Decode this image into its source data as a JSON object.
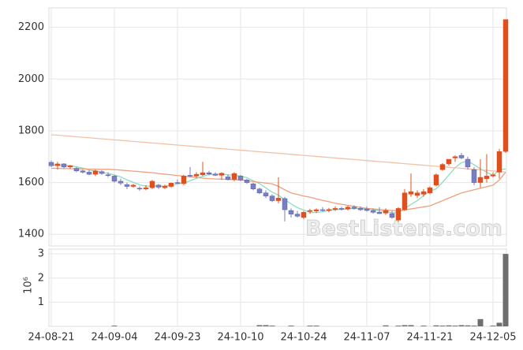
{
  "chart_data": {
    "type": "candlestick",
    "categories": [
      "24-08-21",
      null,
      null,
      null,
      null,
      null,
      null,
      null,
      null,
      null,
      "24-09-04",
      null,
      null,
      null,
      null,
      null,
      null,
      null,
      null,
      null,
      "24-09-23",
      null,
      null,
      null,
      null,
      null,
      null,
      null,
      null,
      null,
      "24-10-10",
      null,
      null,
      null,
      null,
      null,
      null,
      null,
      null,
      null,
      "24-10-24",
      null,
      null,
      null,
      null,
      null,
      null,
      null,
      null,
      null,
      "24-11-07",
      null,
      null,
      null,
      null,
      null,
      null,
      null,
      null,
      null,
      "24-11-21",
      null,
      null,
      null,
      null,
      null,
      null,
      null,
      null,
      null,
      "24-12-05",
      null,
      null
    ],
    "open": [
      1678,
      1665,
      1672,
      1660,
      1655,
      1645,
      1640,
      1632,
      1642,
      1630,
      1625,
      1605,
      1592,
      1585,
      1578,
      1575,
      1580,
      1590,
      1580,
      1585,
      1600,
      1596,
      1628,
      1625,
      1630,
      1638,
      1633,
      1628,
      1622,
      1612,
      1625,
      1610,
      1595,
      1575,
      1560,
      1548,
      1530,
      1538,
      1492,
      1478,
      1465,
      1488,
      1490,
      1495,
      1492,
      1496,
      1500,
      1498,
      1505,
      1500,
      1498,
      1492,
      1485,
      1482,
      1480,
      1455,
      1495,
      1555,
      1550,
      1555,
      1560,
      1590,
      1650,
      1672,
      1695,
      1705,
      1690,
      1650,
      1600,
      1615,
      1625,
      1640,
      1720
    ],
    "high": [
      1685,
      1680,
      1675,
      1668,
      1660,
      1650,
      1648,
      1650,
      1648,
      1640,
      1630,
      1615,
      1600,
      1595,
      1585,
      1590,
      1610,
      1595,
      1592,
      1600,
      1612,
      1630,
      1660,
      1640,
      1680,
      1645,
      1640,
      1640,
      1632,
      1640,
      1630,
      1615,
      1600,
      1580,
      1570,
      1555,
      1620,
      1545,
      1500,
      1490,
      1490,
      1498,
      1500,
      1505,
      1502,
      1508,
      1506,
      1510,
      1512,
      1508,
      1508,
      1500,
      1505,
      1500,
      1490,
      1505,
      1575,
      1635,
      1570,
      1575,
      1585,
      1635,
      1675,
      1690,
      1705,
      1715,
      1700,
      1660,
      1690,
      1710,
      1640,
      1730,
      2230
    ],
    "low": [
      1660,
      1650,
      1655,
      1652,
      1640,
      1635,
      1628,
      1625,
      1630,
      1620,
      1600,
      1590,
      1575,
      1580,
      1568,
      1570,
      1575,
      1575,
      1575,
      1580,
      1595,
      1590,
      1620,
      1618,
      1625,
      1628,
      1625,
      1610,
      1608,
      1605,
      1605,
      1595,
      1570,
      1555,
      1540,
      1525,
      1520,
      1450,
      1465,
      1465,
      1458,
      1480,
      1482,
      1488,
      1485,
      1490,
      1492,
      1492,
      1495,
      1490,
      1488,
      1480,
      1478,
      1475,
      1460,
      1448,
      1490,
      1545,
      1540,
      1545,
      1555,
      1585,
      1645,
      1665,
      1680,
      1690,
      1650,
      1590,
      1580,
      1600,
      1620,
      1615,
      1715
    ],
    "close": [
      1665,
      1672,
      1660,
      1665,
      1645,
      1640,
      1632,
      1645,
      1635,
      1628,
      1605,
      1598,
      1585,
      1590,
      1575,
      1580,
      1605,
      1582,
      1586,
      1598,
      1598,
      1625,
      1625,
      1632,
      1638,
      1633,
      1628,
      1636,
      1612,
      1635,
      1610,
      1600,
      1575,
      1560,
      1548,
      1530,
      1540,
      1495,
      1478,
      1470,
      1485,
      1492,
      1495,
      1492,
      1496,
      1500,
      1497,
      1505,
      1500,
      1495,
      1492,
      1485,
      1480,
      1492,
      1465,
      1500,
      1560,
      1565,
      1560,
      1565,
      1580,
      1630,
      1670,
      1690,
      1700,
      1695,
      1660,
      1600,
      1620,
      1625,
      1630,
      1720,
      2230
    ],
    "up_color": "#e0501e",
    "down_color": "#7a7fc4",
    "lines": [
      {
        "color": "#8fdcc0",
        "values": [
          1668,
          1668,
          1666,
          1665,
          1661,
          1656,
          1648,
          1645,
          1639,
          1636,
          1629,
          1622,
          1610,
          1601,
          1591,
          1586,
          1587,
          1586,
          1586,
          1590,
          1594,
          1598,
          1607,
          1616,
          1624,
          1631,
          1631,
          1634,
          1629,
          1629,
          1624,
          1619,
          1607,
          1596,
          1579,
          1563,
          1551,
          1534,
          1518,
          1503,
          1494,
          1484,
          1484,
          1487,
          1492,
          1495,
          1496,
          1498,
          1500,
          1499,
          1498,
          1496,
          1490,
          1489,
          1483,
          1484,
          1499,
          1516,
          1530,
          1550,
          1566,
          1576,
          1601,
          1629,
          1658,
          1677,
          1683,
          1669,
          1653,
          1640,
          1627,
          1651,
          1652
        ]
      },
      {
        "color": "#eda07e",
        "values": [
          1655,
          1655,
          1654,
          1654,
          1653,
          1653,
          1652,
          1652,
          1651,
          1651,
          1650,
          1648,
          1646,
          1644,
          1642,
          1640,
          1638,
          1635,
          1632,
          1630,
          1627,
          1625,
          1622,
          1620,
          1617,
          1615,
          1614,
          1613,
          1612,
          1611,
          1610,
          1607,
          1604,
          1601,
          1598,
          1595,
          1585,
          1572,
          1560,
          1554,
          1548,
          1543,
          1537,
          1531,
          1526,
          1520,
          1516,
          1512,
          1508,
          1504,
          1500,
          1498,
          1496,
          1494,
          1492,
          1490,
          1494,
          1498,
          1502,
          1506,
          1510,
          1520,
          1530,
          1540,
          1550,
          1560,
          1566,
          1572,
          1578,
          1584,
          1590,
          1610,
          1640
        ]
      },
      {
        "color": "#f2c2a8",
        "values": [
          1785,
          1783,
          1781,
          1779,
          1777,
          1775,
          1773,
          1771,
          1769,
          1767,
          1765,
          1763,
          1761,
          1759,
          1757,
          1755,
          1753,
          1751,
          1749,
          1747,
          1745,
          1743,
          1741,
          1739,
          1737,
          1735,
          1733,
          1731,
          1729,
          1727,
          1725,
          1723,
          1721,
          1719,
          1717,
          1715,
          1713,
          1711,
          1709,
          1707,
          1705,
          1703,
          1701,
          1699,
          1697,
          1695,
          1693,
          1691,
          1689,
          1687,
          1685,
          1683,
          1681,
          1679,
          1677,
          1675,
          1673,
          1671,
          1669,
          1667,
          1665,
          1663,
          1661,
          1659,
          1657,
          1655,
          1653,
          1651,
          1649,
          1647,
          1645,
          1643,
          1641
        ]
      }
    ],
    "ylim": [
      1355,
      2275
    ],
    "yticks": [
      1400,
      1600,
      1800,
      2000,
      2200
    ],
    "grid": true,
    "watermark": "BestListens.com",
    "volume": {
      "type": "bar",
      "color": "#6e6e6e",
      "y_label": "10⁶",
      "values": [
        0,
        0,
        0,
        0,
        0,
        0,
        0,
        0,
        0,
        0,
        0.03,
        0,
        0,
        0,
        0,
        0,
        0,
        0,
        0,
        0,
        0,
        0,
        0,
        0,
        0,
        0,
        0,
        0,
        0,
        0,
        0,
        0,
        0,
        0.05,
        0.05,
        0.03,
        0,
        0,
        0.03,
        0,
        0,
        0.03,
        0.03,
        0,
        0,
        0,
        0,
        0,
        0,
        0,
        0,
        0,
        0,
        0.04,
        0,
        0.03,
        0.05,
        0.05,
        0,
        0.03,
        0,
        0.04,
        0.03,
        0.04,
        0.03,
        0.05,
        0.04,
        0.03,
        0.3,
        0,
        0.03,
        0.15,
        3
      ],
      "ylim": [
        0,
        3.2
      ],
      "yticks": [
        1,
        2,
        3
      ]
    }
  }
}
